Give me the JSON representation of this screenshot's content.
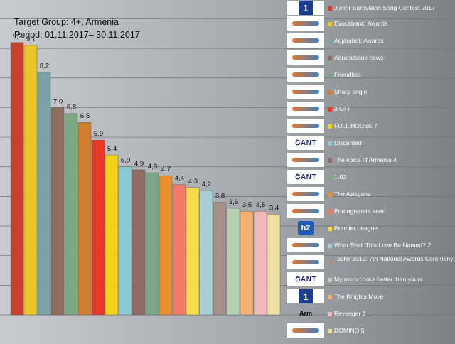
{
  "header": {
    "title_line1": "Target Group: 4+, Armenia",
    "title_line2": "Period: 01.11.2017– 30.11.2017"
  },
  "chart_data": {
    "type": "bar",
    "categories": [
      "Junior Eurovision Song Contest 2017",
      "Evocabank: Awards",
      "Adjarabet: Awards",
      "Aararatbank news",
      "Friendlies",
      "Sharp angle",
      "3 OFF",
      "FULL HOUSE 7",
      "Discarded",
      "The voice of Armenia 4",
      "1-02",
      "The Azizyans",
      "Pomegranate seed",
      "Premier League",
      "What Shall This Love Be Named? 2",
      "Tashir 2013: 7th National Awards Ceremony",
      "My mom cooks better than yours",
      "The Knights Move",
      "Revenger 2",
      "DOMINO 5"
    ],
    "values": [
      9.2,
      9.1,
      8.2,
      7.0,
      6.8,
      6.5,
      5.9,
      5.4,
      5.0,
      4.9,
      4.8,
      4.7,
      4.4,
      4.3,
      4.2,
      3.8,
      3.6,
      3.5,
      3.5,
      3.4
    ],
    "value_labels": [
      "9,2",
      "9,1",
      "8,2",
      "7,0",
      "6,8",
      "6,5",
      "5,9",
      "5,4",
      "5,0",
      "4,9",
      "4,8",
      "4,7",
      "4,4",
      "4,3",
      "4,2",
      "3,8",
      "3,6",
      "3,5",
      "3,5",
      "3,4"
    ],
    "colors": [
      "#c8412b",
      "#e8c52a",
      "#7aa0a8",
      "#8c6e60",
      "#79a883",
      "#cf7f2c",
      "#e8382a",
      "#f2d215",
      "#8ccad3",
      "#8f6d64",
      "#7aa886",
      "#e8902e",
      "#f07b67",
      "#f4dc4a",
      "#a7cfd5",
      "#a59188",
      "#b4d1b1",
      "#f5b172",
      "#f5b8b8",
      "#eedfa4"
    ],
    "channels": [
      "h1",
      "armtv",
      "armtv",
      "armtv",
      "armtv",
      "armtv",
      "armtv",
      "armtv",
      "shant",
      "armtv",
      "shant",
      "armtv",
      "armtv",
      "h2",
      "armtv",
      "armtv",
      "shant",
      "h1",
      "armenia",
      "armtv"
    ],
    "ylim": [
      0,
      10
    ],
    "grid": true,
    "legend": "right"
  },
  "logos": {
    "h1": "1",
    "shant": "ՇANT",
    "h2": "h2",
    "armenia": "Arm"
  }
}
